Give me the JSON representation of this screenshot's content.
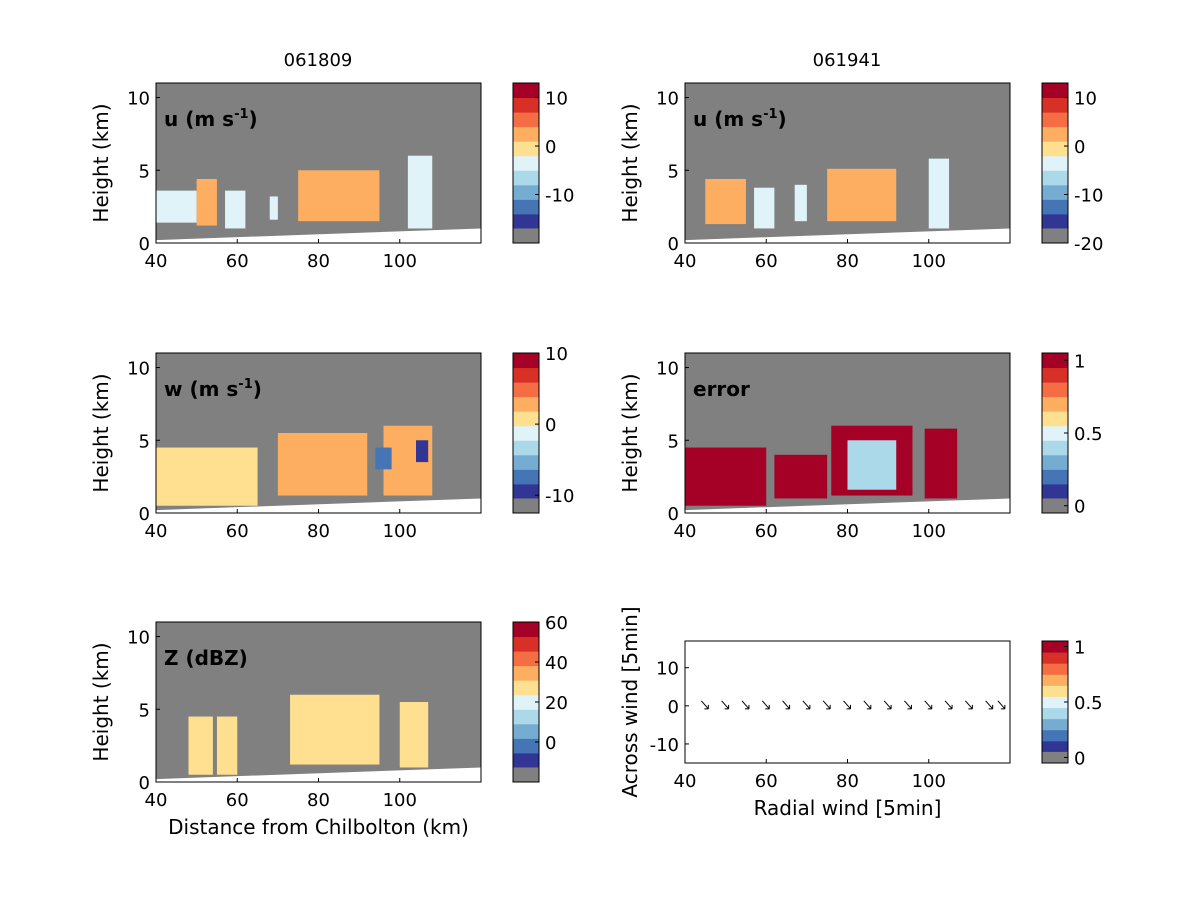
{
  "figure": {
    "col_titles": [
      "061809",
      "061941"
    ],
    "colors": {
      "missing": "#808080",
      "palette": [
        "#313695",
        "#4575b4",
        "#74add1",
        "#abd9e9",
        "#e0f3f8",
        "#fee090",
        "#fdae61",
        "#f46d43",
        "#d73027",
        "#a50026"
      ]
    }
  },
  "chart_data": [
    {
      "type": "heatmap",
      "panel": "u-061809",
      "label_main": "u (m s",
      "label_sup": "-1",
      "label_tail": ")",
      "ylabel": "Height (km)",
      "xlabel": "",
      "xlim": [
        40,
        120
      ],
      "ylim": [
        0,
        11
      ],
      "x_ticks": [
        "40",
        "60",
        "80",
        "100"
      ],
      "y_ticks": [
        "0",
        "5",
        "10"
      ],
      "colorbar": {
        "range": [
          -20,
          13
        ],
        "ticks": [
          "10",
          "0",
          "-10"
        ],
        "tick_values": [
          10,
          0,
          -10
        ]
      },
      "field": "u",
      "cells": [
        {
          "x0": 40,
          "x1": 50,
          "y0": 1.4,
          "y1": 3.6,
          "value": -4
        },
        {
          "x0": 50,
          "x1": 55,
          "y0": 1.2,
          "y1": 4.4,
          "value": 2
        },
        {
          "x0": 57,
          "x1": 62,
          "y0": 1.0,
          "y1": 3.6,
          "value": -5
        },
        {
          "x0": 68,
          "x1": 70,
          "y0": 1.6,
          "y1": 3.2,
          "value": -6
        },
        {
          "x0": 75,
          "x1": 95,
          "y0": 1.5,
          "y1": 5.0,
          "value": 1
        },
        {
          "x0": 102,
          "x1": 108,
          "y0": 1.0,
          "y1": 6.0,
          "value": -6
        }
      ]
    },
    {
      "type": "heatmap",
      "panel": "u-061941",
      "label_main": "u (m s",
      "label_sup": "-1",
      "label_tail": ")",
      "ylabel": "Height (km)",
      "xlabel": "",
      "xlim": [
        40,
        120
      ],
      "ylim": [
        0,
        11
      ],
      "x_ticks": [
        "40",
        "60",
        "80",
        "100"
      ],
      "y_ticks": [
        "0",
        "5",
        "10"
      ],
      "colorbar": {
        "range": [
          -20,
          13
        ],
        "ticks": [
          "10",
          "0",
          "-10",
          "-20"
        ],
        "tick_values": [
          10,
          0,
          -10,
          -20
        ]
      },
      "field": "u",
      "cells": [
        {
          "x0": 45,
          "x1": 55,
          "y0": 1.3,
          "y1": 4.4,
          "value": 1
        },
        {
          "x0": 57,
          "x1": 62,
          "y0": 1.0,
          "y1": 3.8,
          "value": -5
        },
        {
          "x0": 67,
          "x1": 70,
          "y0": 1.5,
          "y1": 4.0,
          "value": -6
        },
        {
          "x0": 75,
          "x1": 92,
          "y0": 1.5,
          "y1": 5.1,
          "value": 1
        },
        {
          "x0": 100,
          "x1": 105,
          "y0": 1.0,
          "y1": 5.8,
          "value": -6
        }
      ]
    },
    {
      "type": "heatmap",
      "panel": "w-061809",
      "label_main": "w (m s",
      "label_sup": "-1",
      "label_tail": ")",
      "ylabel": "Height (km)",
      "xlabel": "",
      "xlim": [
        40,
        120
      ],
      "ylim": [
        0,
        11
      ],
      "x_ticks": [
        "40",
        "60",
        "80",
        "100"
      ],
      "y_ticks": [
        "0",
        "5",
        "10"
      ],
      "colorbar": {
        "range": [
          -12.5,
          10
        ],
        "ticks": [
          "10",
          "0",
          "-10"
        ],
        "tick_values": [
          10,
          0,
          -10
        ]
      },
      "field": "w",
      "cells": [
        {
          "x0": 40,
          "x1": 65,
          "y0": 0.5,
          "y1": 4.5,
          "value": 0
        },
        {
          "x0": 70,
          "x1": 92,
          "y0": 1.2,
          "y1": 5.5,
          "value": 1
        },
        {
          "x0": 96,
          "x1": 108,
          "y0": 1.2,
          "y1": 6.0,
          "value": 2
        },
        {
          "x0": 94,
          "x1": 98,
          "y0": 3.0,
          "y1": 4.5,
          "value": -10
        },
        {
          "x0": 104,
          "x1": 107,
          "y0": 3.5,
          "y1": 5.0,
          "value": -11
        }
      ]
    },
    {
      "type": "heatmap",
      "panel": "error-061941",
      "label_main": "error",
      "label_sup": "",
      "label_tail": "",
      "ylabel": "Height (km)",
      "xlabel": "",
      "xlim": [
        40,
        120
      ],
      "ylim": [
        0,
        11
      ],
      "x_ticks": [
        "40",
        "60",
        "80",
        "100"
      ],
      "y_ticks": [
        "0",
        "5",
        "10"
      ],
      "colorbar": {
        "range": [
          -0.05,
          1.05
        ],
        "ticks": [
          "1",
          "0.5",
          "0"
        ],
        "tick_values": [
          1,
          0.5,
          0
        ]
      },
      "field": "error",
      "cells": [
        {
          "x0": 40,
          "x1": 60,
          "y0": 0.5,
          "y1": 4.5,
          "value": 1
        },
        {
          "x0": 62,
          "x1": 75,
          "y0": 1.0,
          "y1": 4.0,
          "value": 1
        },
        {
          "x0": 76,
          "x1": 96,
          "y0": 1.2,
          "y1": 6.0,
          "value": 1
        },
        {
          "x0": 99,
          "x1": 107,
          "y0": 1.0,
          "y1": 5.8,
          "value": 1
        },
        {
          "x0": 80,
          "x1": 92,
          "y0": 1.6,
          "y1": 5.0,
          "value": 0.3
        }
      ]
    },
    {
      "type": "heatmap",
      "panel": "Z-061809",
      "label_main": "Z (dBZ)",
      "label_sup": "",
      "label_tail": "",
      "ylabel": "Height (km)",
      "xlabel": "Distance from Chilbolton (km)",
      "xlim": [
        40,
        120
      ],
      "ylim": [
        0,
        11
      ],
      "x_ticks": [
        "40",
        "60",
        "80",
        "100"
      ],
      "y_ticks": [
        "0",
        "5",
        "10"
      ],
      "colorbar": {
        "range": [
          -20,
          60
        ],
        "ticks": [
          "60",
          "40",
          "20",
          "0"
        ],
        "tick_values": [
          60,
          40,
          20,
          0
        ]
      },
      "field": "Z",
      "cells": [
        {
          "x0": 48,
          "x1": 54,
          "y0": 0.5,
          "y1": 4.5,
          "value": 20
        },
        {
          "x0": 55,
          "x1": 60,
          "y0": 0.5,
          "y1": 4.5,
          "value": 22
        },
        {
          "x0": 73,
          "x1": 95,
          "y0": 1.2,
          "y1": 6.0,
          "value": 24
        },
        {
          "x0": 100,
          "x1": 107,
          "y0": 1.0,
          "y1": 5.5,
          "value": 26
        }
      ]
    },
    {
      "type": "scatter",
      "panel": "wind-061941",
      "label_main": "",
      "label_sup": "",
      "label_tail": "",
      "ylabel": "Across wind [5min]",
      "xlabel": "Radial wind [5min]",
      "xlim": [
        40,
        120
      ],
      "ylim": [
        -15,
        17
      ],
      "x_ticks": [
        "40",
        "60",
        "80",
        "100"
      ],
      "y_ticks": [
        "-10",
        "0",
        "10"
      ],
      "y_tick_values": [
        -10,
        0,
        10
      ],
      "colorbar": {
        "range": [
          -0.05,
          1.05
        ],
        "ticks": [
          "1",
          "0.5",
          "0"
        ],
        "tick_values": [
          1,
          0.5,
          0
        ]
      },
      "arrows_x": [
        45,
        50,
        55,
        60,
        65,
        70,
        75,
        80,
        85,
        90,
        95,
        100,
        105,
        110,
        115,
        118
      ],
      "arrows_y": 0
    }
  ]
}
